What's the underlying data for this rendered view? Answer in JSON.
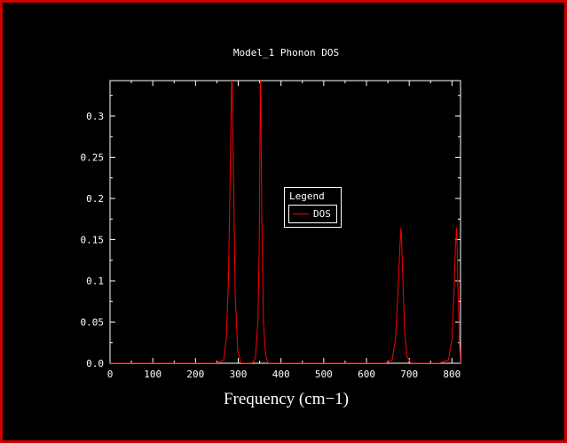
{
  "window": {
    "background": "#000000",
    "frame_color": "#cc0000",
    "axis_color": "#ffffff",
    "text_color": "#ffffff"
  },
  "chart_data": {
    "type": "line",
    "title": "Model_1 Phonon DOS",
    "xlabel": "Frequency (cm−1)",
    "ylabel": "",
    "xlim": [
      0,
      820
    ],
    "ylim": [
      0,
      0.343
    ],
    "grid": false,
    "legend_position": "inside-center",
    "xticks": [
      0,
      100,
      200,
      300,
      400,
      500,
      600,
      700,
      800
    ],
    "yticks": [
      0,
      0.05,
      0.1,
      0.15,
      0.2,
      0.25,
      0.3
    ],
    "ytick_labels": [
      "0.0",
      "0.05",
      "0.1",
      "0.15",
      "0.2",
      "0.25",
      "0.3"
    ],
    "legend": {
      "title": "Legend",
      "entries": [
        {
          "label": "DOS",
          "color": "#ff0000"
        }
      ]
    },
    "series": [
      {
        "name": "DOS",
        "color": "#ff0000",
        "x": [
          0,
          250,
          266,
          272,
          277,
          282,
          285,
          288,
          293,
          299,
          306,
          332,
          340,
          346,
          349,
          352,
          355,
          359,
          364,
          370,
          560,
          645,
          660,
          668,
          673,
          678,
          681,
          684,
          689,
          695,
          704,
          770,
          792,
          800,
          805,
          808,
          811,
          814,
          818,
          820
        ],
        "y": [
          0,
          0,
          0.004,
          0.03,
          0.1,
          0.26,
          0.36,
          0.26,
          0.08,
          0.015,
          0,
          0,
          0.006,
          0.05,
          0.14,
          0.36,
          0.18,
          0.05,
          0.01,
          0,
          0,
          0,
          0.004,
          0.03,
          0.08,
          0.14,
          0.165,
          0.12,
          0.04,
          0.008,
          0,
          0,
          0.004,
          0.03,
          0.09,
          0.14,
          0.165,
          0.09,
          0.02,
          0
        ]
      }
    ],
    "peak_summary": {
      "peak_positions_cm-1": [
        285,
        352,
        681,
        811
      ],
      "peak_heights": [
        "clipped at top (>0.34)",
        "clipped at top (>0.34)",
        0.165,
        0.165
      ]
    }
  }
}
